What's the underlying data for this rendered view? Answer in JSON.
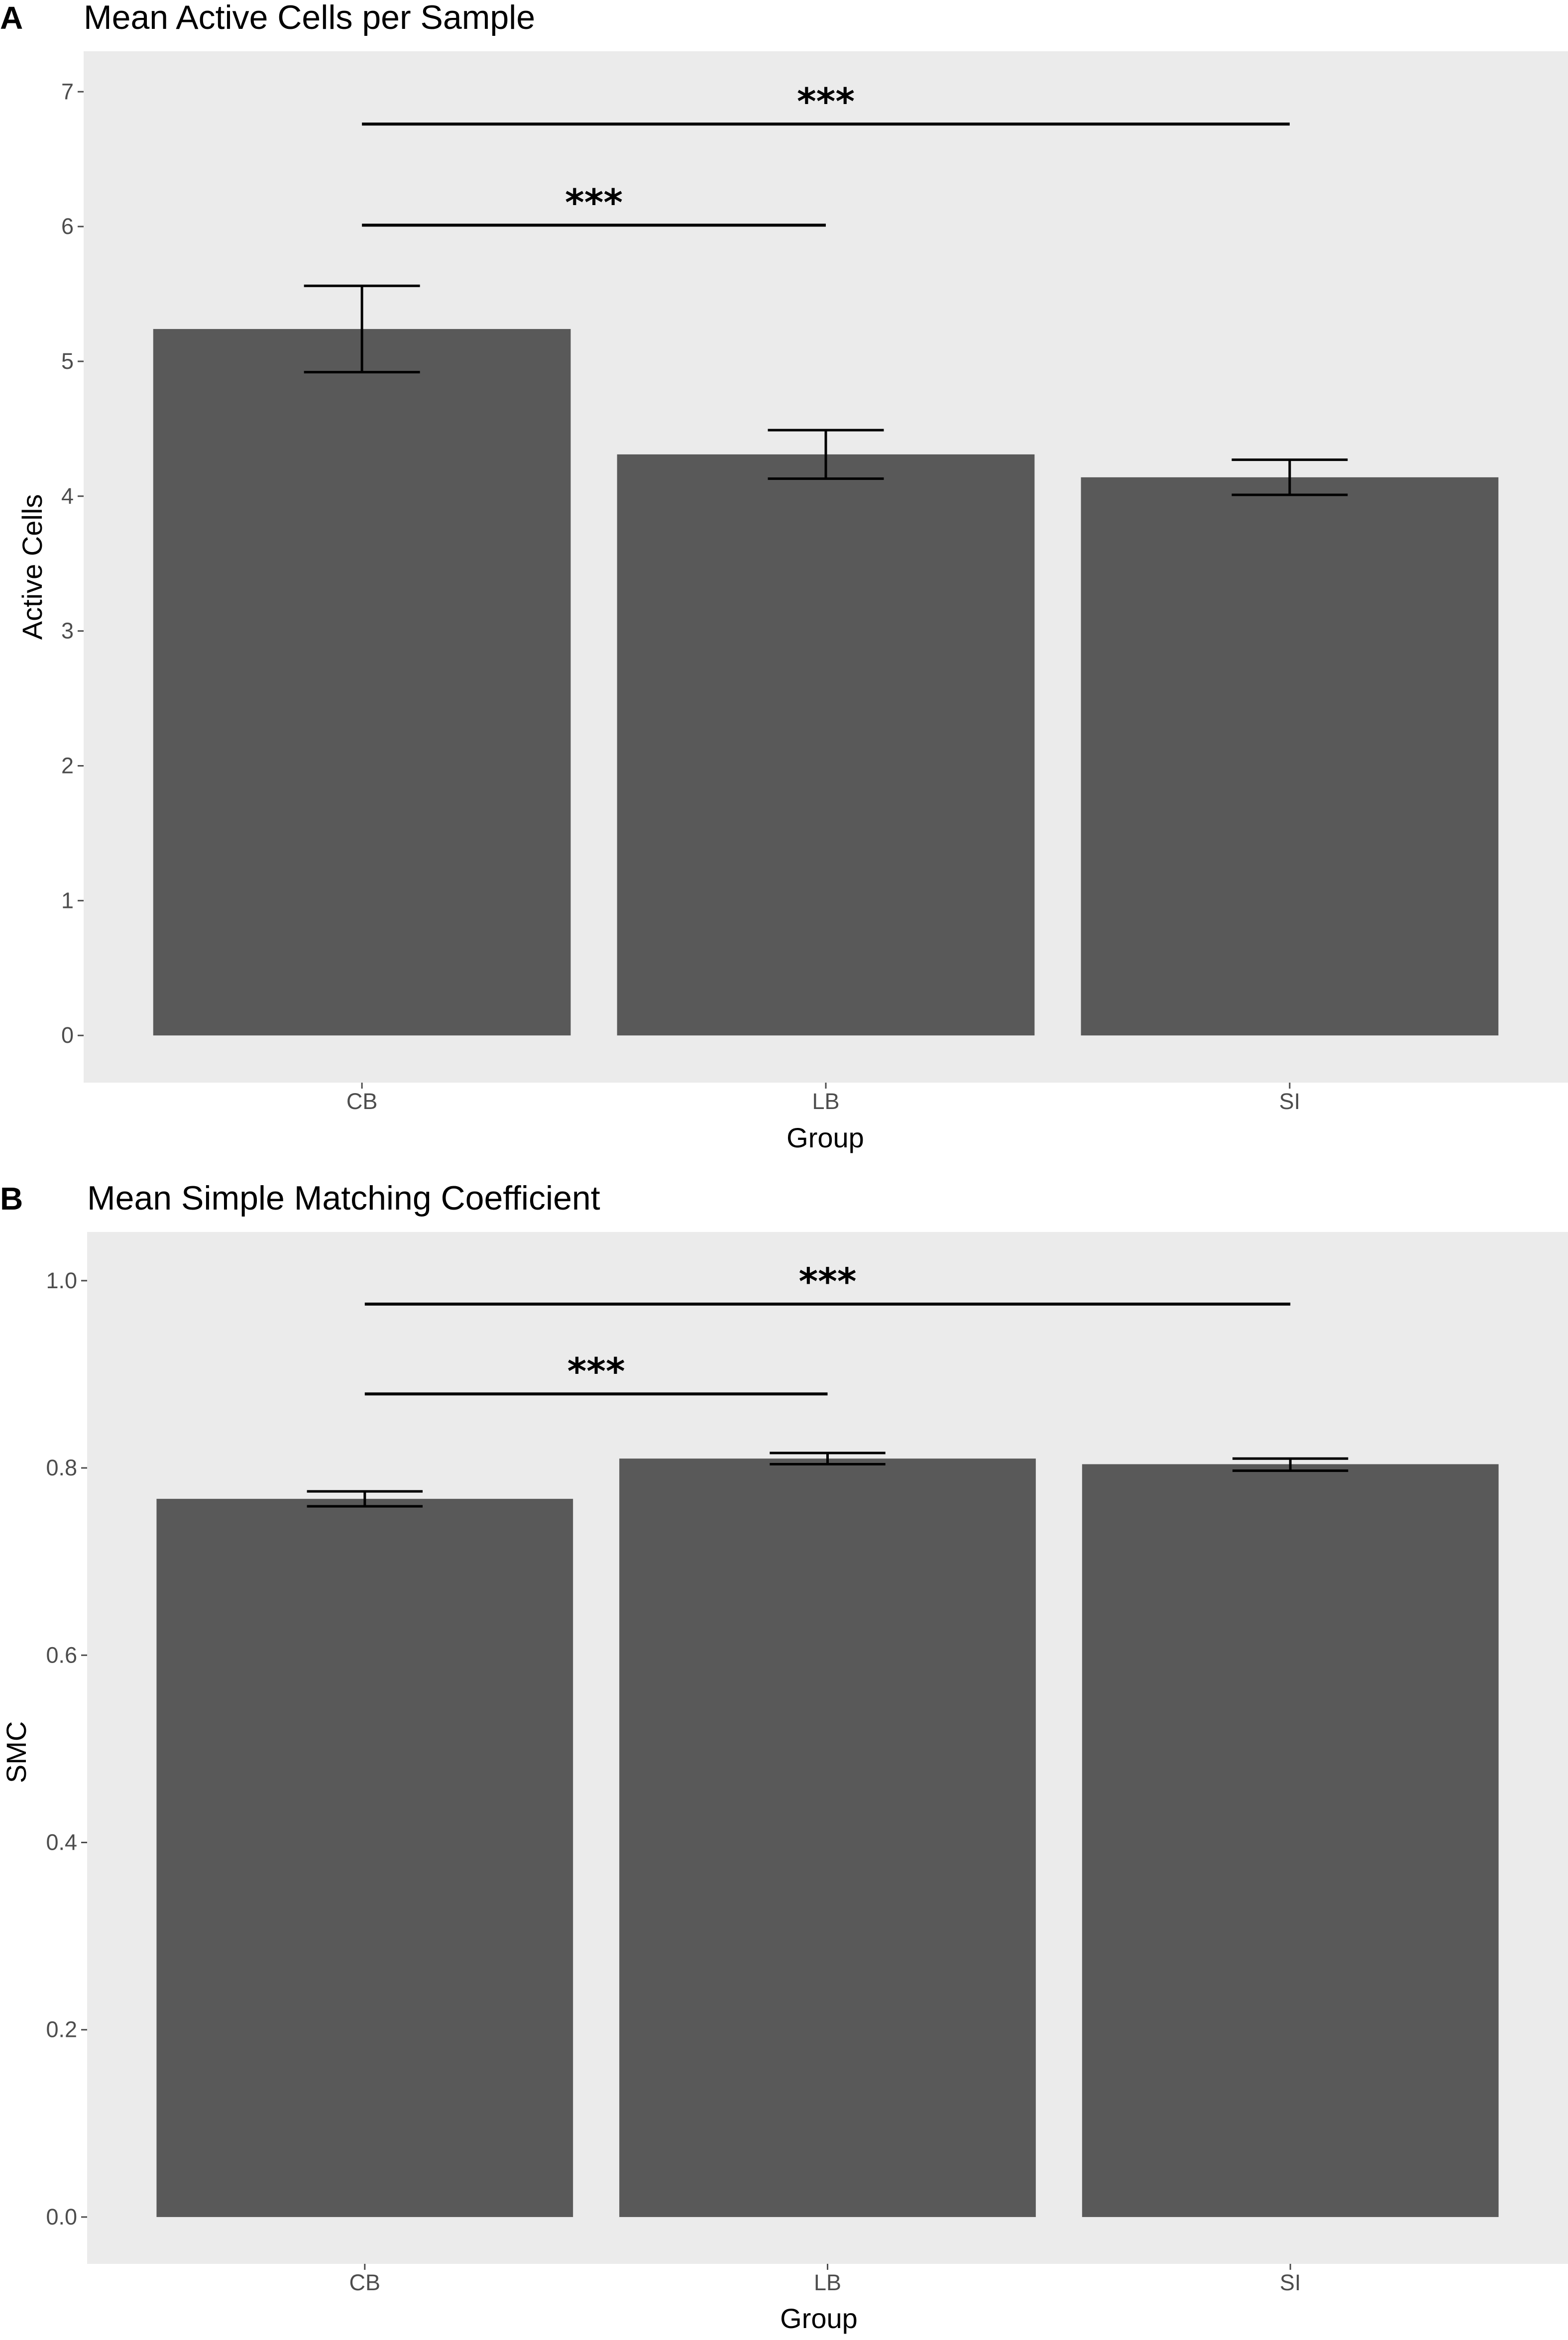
{
  "colors": {
    "panel_bg": "#ebebeb",
    "bar_fill": "#595959",
    "tick_color": "#4d4d4d",
    "line_color": "#000000"
  },
  "chart_data": [
    {
      "type": "bar",
      "panel_label": "A",
      "title": "Mean Active Cells per Sample",
      "xlabel": "Group",
      "ylabel": "Active Cells",
      "categories": [
        "CB",
        "LB",
        "SI"
      ],
      "values": [
        5.24,
        4.31,
        4.14
      ],
      "error_low": [
        4.92,
        4.13,
        4.01
      ],
      "error_high": [
        5.56,
        4.49,
        4.27
      ],
      "ylim": [
        -0.35,
        7.3
      ],
      "yticks": [
        0,
        1,
        2,
        3,
        4,
        5,
        6,
        7
      ],
      "ytick_labels": [
        "0",
        "1",
        "2",
        "3",
        "4",
        "5",
        "6",
        "7"
      ],
      "grid": false,
      "significance": [
        {
          "from": "CB",
          "to": "LB",
          "y": 6.01,
          "label": "***"
        },
        {
          "from": "CB",
          "to": "SI",
          "y": 6.76,
          "label": "***"
        }
      ]
    },
    {
      "type": "bar",
      "panel_label": "B",
      "title": "Mean Simple Matching Coefficient",
      "xlabel": "Group",
      "ylabel": "SMC",
      "categories": [
        "CB",
        "LB",
        "SI"
      ],
      "values": [
        0.767,
        0.81,
        0.804
      ],
      "error_low": [
        0.759,
        0.804,
        0.797
      ],
      "error_high": [
        0.775,
        0.816,
        0.81
      ],
      "ylim": [
        -0.05,
        1.052
      ],
      "yticks": [
        0.0,
        0.2,
        0.4,
        0.6,
        0.8,
        1.0
      ],
      "ytick_labels": [
        "0.0",
        "0.2",
        "0.4",
        "0.6",
        "0.8",
        "1.0"
      ],
      "grid": false,
      "significance": [
        {
          "from": "CB",
          "to": "LB",
          "y": 0.879,
          "label": "***"
        },
        {
          "from": "CB",
          "to": "SI",
          "y": 0.975,
          "label": "***"
        }
      ]
    }
  ]
}
